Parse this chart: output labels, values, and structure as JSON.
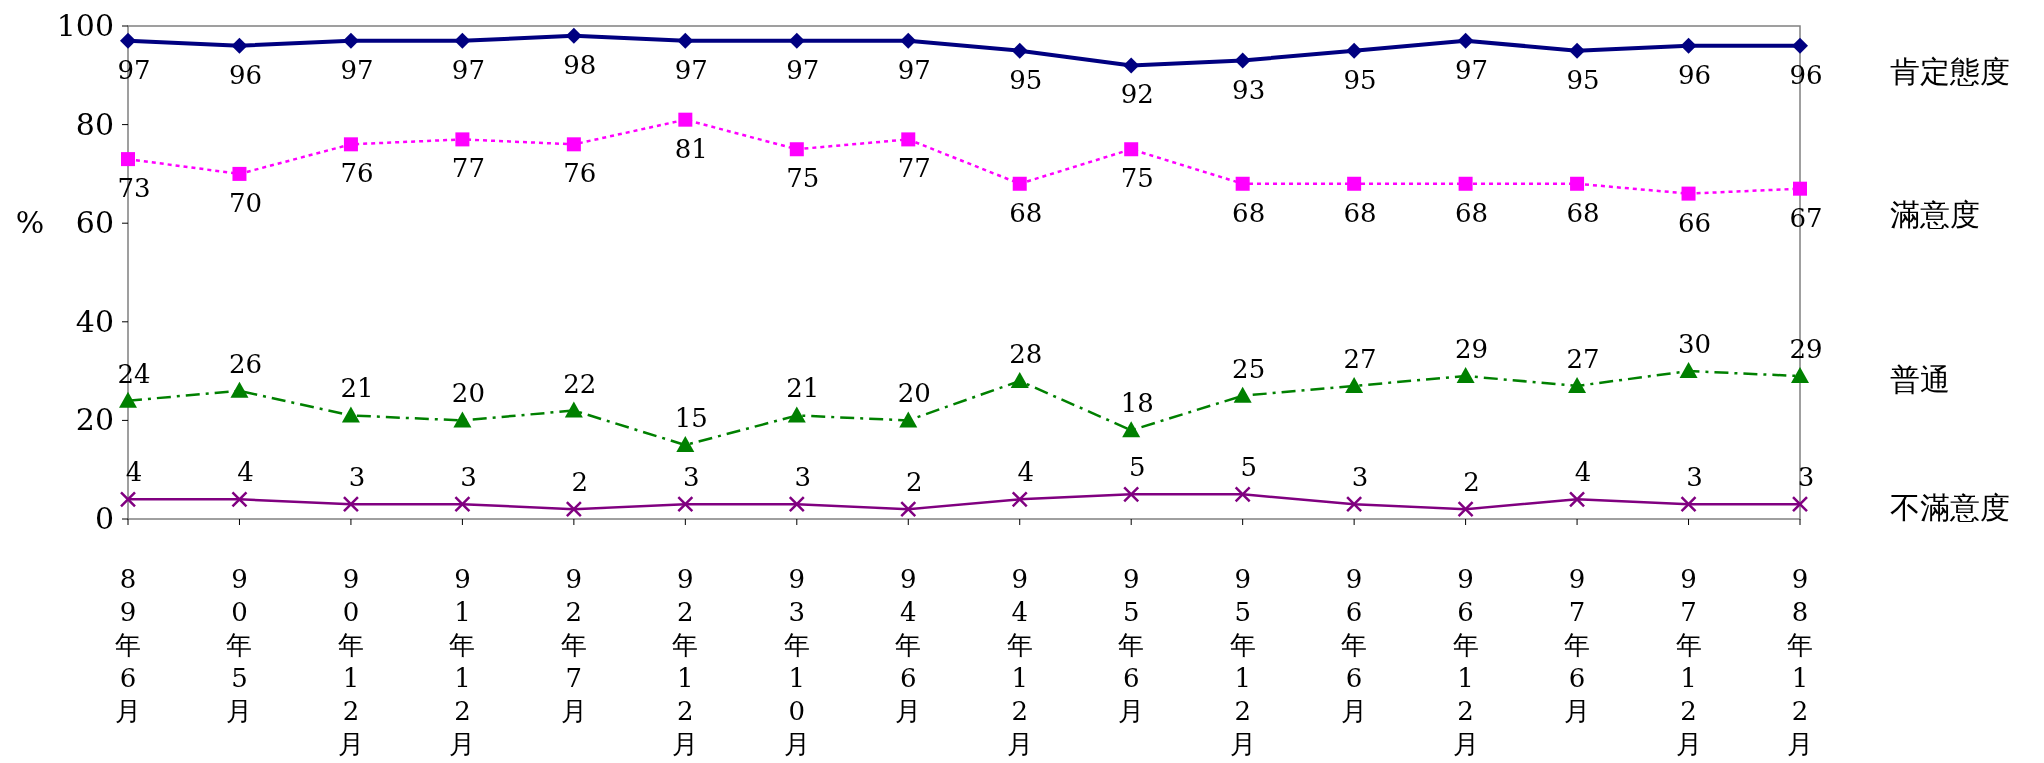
{
  "chart_data": {
    "type": "line",
    "ylabel": "%",
    "categories": [
      "89年6月",
      "90年5月",
      "90年12月",
      "91年12月",
      "92年7月",
      "92年12月",
      "93年10月",
      "94年6月",
      "94年12月",
      "95年6月",
      "95年12月",
      "96年6月",
      "96年12月",
      "97年6月",
      "97年12月",
      "98年12月"
    ],
    "series": [
      {
        "name": "肯定態度",
        "color": "#000080",
        "marker": "diamond",
        "line_style": "solid",
        "values": [
          97,
          96,
          97,
          97,
          98,
          97,
          97,
          97,
          95,
          92,
          93,
          95,
          97,
          95,
          96,
          96
        ]
      },
      {
        "name": "滿意度",
        "color": "#ff00ff",
        "marker": "square",
        "line_style": "dotted",
        "values": [
          73,
          70,
          76,
          77,
          76,
          81,
          75,
          77,
          68,
          75,
          68,
          68,
          68,
          68,
          66,
          67
        ]
      },
      {
        "name": "普通",
        "color": "#008000",
        "marker": "triangle",
        "line_style": "dashed",
        "values": [
          24,
          26,
          21,
          20,
          22,
          15,
          21,
          20,
          28,
          18,
          25,
          27,
          29,
          27,
          30,
          29
        ]
      },
      {
        "name": "不滿意度",
        "color": "#800080",
        "marker": "cross",
        "line_style": "solid",
        "values": [
          4,
          4,
          3,
          3,
          2,
          3,
          3,
          2,
          4,
          5,
          5,
          3,
          2,
          4,
          3,
          3
        ]
      }
    ],
    "ylim": [
      0,
      100
    ],
    "yticks": [
      0,
      20,
      40,
      60,
      80,
      100
    ],
    "grid": false,
    "data_labels": true,
    "legend": "right"
  }
}
